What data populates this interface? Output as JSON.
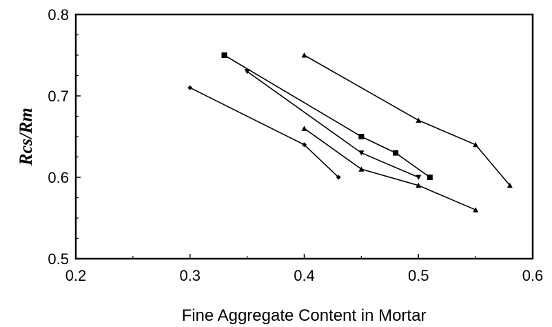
{
  "chart_data": {
    "type": "line",
    "title": "",
    "xlabel": "Fine Aggregate Content in Mortar",
    "ylabel": "Rcs/Rm",
    "xlim": [
      0.2,
      0.6
    ],
    "ylim": [
      0.5,
      0.8
    ],
    "x_ticks": [
      "0.2",
      "0.3",
      "0.4",
      "0.5",
      "0.6"
    ],
    "y_ticks": [
      "0.5",
      "0.6",
      "0.7",
      "0.8"
    ],
    "grid": false,
    "legend": "none",
    "series": [
      {
        "marker": "diamond",
        "color": "#000000",
        "points": [
          [
            0.3,
            0.71
          ],
          [
            0.4,
            0.64
          ],
          [
            0.43,
            0.6
          ]
        ]
      },
      {
        "marker": "square",
        "color": "#000000",
        "points": [
          [
            0.33,
            0.75
          ],
          [
            0.45,
            0.65
          ],
          [
            0.48,
            0.63
          ],
          [
            0.51,
            0.6
          ]
        ]
      },
      {
        "marker": "triangle-down",
        "color": "#000000",
        "points": [
          [
            0.35,
            0.73
          ],
          [
            0.45,
            0.63
          ],
          [
            0.5,
            0.6
          ]
        ]
      },
      {
        "marker": "triangle",
        "color": "#000000",
        "points": [
          [
            0.4,
            0.66
          ],
          [
            0.45,
            0.61
          ],
          [
            0.5,
            0.59
          ],
          [
            0.55,
            0.56
          ]
        ]
      },
      {
        "marker": "triangle",
        "color": "#000000",
        "points": [
          [
            0.4,
            0.75
          ],
          [
            0.5,
            0.67
          ],
          [
            0.55,
            0.64
          ],
          [
            0.58,
            0.59
          ]
        ]
      }
    ]
  }
}
